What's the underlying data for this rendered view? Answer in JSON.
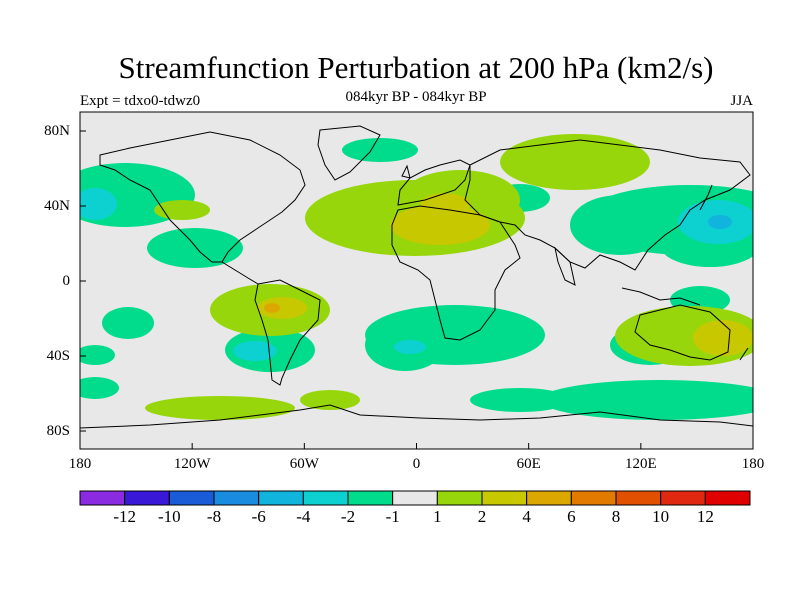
{
  "figure": {
    "title": "Streamfunction Perturbation at 200 hPa (km2/s)",
    "subtitle": "084kyr BP - 084kyr BP",
    "left_label": "Expt = tdxo0-tdwz0",
    "right_label": "JJA"
  },
  "axes": {
    "lat_labels": [
      "80N",
      "40N",
      "0",
      "40S",
      "80S"
    ],
    "lon_labels": [
      "180",
      "120W",
      "60W",
      "0",
      "60E",
      "120E",
      "180"
    ]
  },
  "colorbar": {
    "colors": [
      "#8a2be2",
      "#3a18d8",
      "#1a5cd8",
      "#1a8ce0",
      "#10b4dc",
      "#0dd1d1",
      "#00dc8c",
      "#e8e8e8",
      "#96d60a",
      "#c8c800",
      "#dca800",
      "#e27a00",
      "#e05000",
      "#e02810",
      "#e00000"
    ],
    "labels": [
      "-12",
      "-10",
      "-8",
      "-6",
      "-4",
      "-2",
      "-1",
      "1",
      "2",
      "4",
      "6",
      "8",
      "10",
      "12"
    ]
  },
  "colors": {
    "background_neutral": "#e8e8e8",
    "pos1": "#96d60a",
    "pos2": "#c8c800",
    "neg1": "#00dc8c",
    "neg2": "#0dd1d1"
  }
}
